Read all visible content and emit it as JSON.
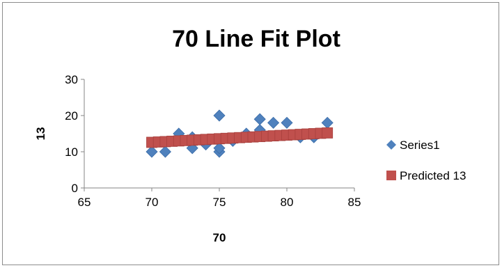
{
  "chart_data": {
    "type": "scatter",
    "title": "70 Line Fit  Plot",
    "xlabel": "70",
    "ylabel": "13",
    "xlim": [
      65,
      85
    ],
    "ylim": [
      0,
      30
    ],
    "x_ticks": [
      65,
      70,
      75,
      80,
      85
    ],
    "y_ticks": [
      0,
      10,
      20,
      30
    ],
    "grid": false,
    "legend_position": "right",
    "series": [
      {
        "name": "Series1",
        "marker": "diamond",
        "color": "#4f81bd",
        "points": [
          {
            "x": 70,
            "y": 10
          },
          {
            "x": 71,
            "y": 10
          },
          {
            "x": 72,
            "y": 15
          },
          {
            "x": 73,
            "y": 11
          },
          {
            "x": 73,
            "y": 14
          },
          {
            "x": 74,
            "y": 12
          },
          {
            "x": 75,
            "y": 20
          },
          {
            "x": 75,
            "y": 10
          },
          {
            "x": 75,
            "y": 11
          },
          {
            "x": 76,
            "y": 13
          },
          {
            "x": 77,
            "y": 15
          },
          {
            "x": 78,
            "y": 19
          },
          {
            "x": 78,
            "y": 16
          },
          {
            "x": 79,
            "y": 18
          },
          {
            "x": 80,
            "y": 18
          },
          {
            "x": 81,
            "y": 14
          },
          {
            "x": 82,
            "y": 14
          },
          {
            "x": 83,
            "y": 18
          }
        ]
      },
      {
        "name": "Predicted 13",
        "marker": "square",
        "color": "#c0504d",
        "points": [
          {
            "x": 70,
            "y": 12.6
          },
          {
            "x": 70.5,
            "y": 12.7
          },
          {
            "x": 71,
            "y": 12.8
          },
          {
            "x": 71.5,
            "y": 12.9
          },
          {
            "x": 72,
            "y": 13.0
          },
          {
            "x": 72.5,
            "y": 13.1
          },
          {
            "x": 73,
            "y": 13.2
          },
          {
            "x": 73.5,
            "y": 13.3
          },
          {
            "x": 74,
            "y": 13.4
          },
          {
            "x": 74.5,
            "y": 13.5
          },
          {
            "x": 75,
            "y": 13.6
          },
          {
            "x": 75.5,
            "y": 13.7
          },
          {
            "x": 76,
            "y": 13.8
          },
          {
            "x": 76.5,
            "y": 13.9
          },
          {
            "x": 77,
            "y": 14.0
          },
          {
            "x": 77.5,
            "y": 14.1
          },
          {
            "x": 78,
            "y": 14.2
          },
          {
            "x": 78.5,
            "y": 14.3
          },
          {
            "x": 79,
            "y": 14.4
          },
          {
            "x": 79.5,
            "y": 14.5
          },
          {
            "x": 80,
            "y": 14.6
          },
          {
            "x": 80.5,
            "y": 14.7
          },
          {
            "x": 81,
            "y": 14.8
          },
          {
            "x": 81.5,
            "y": 14.9
          },
          {
            "x": 82,
            "y": 15.0
          },
          {
            "x": 82.5,
            "y": 15.1
          },
          {
            "x": 83,
            "y": 15.2
          }
        ]
      }
    ]
  }
}
